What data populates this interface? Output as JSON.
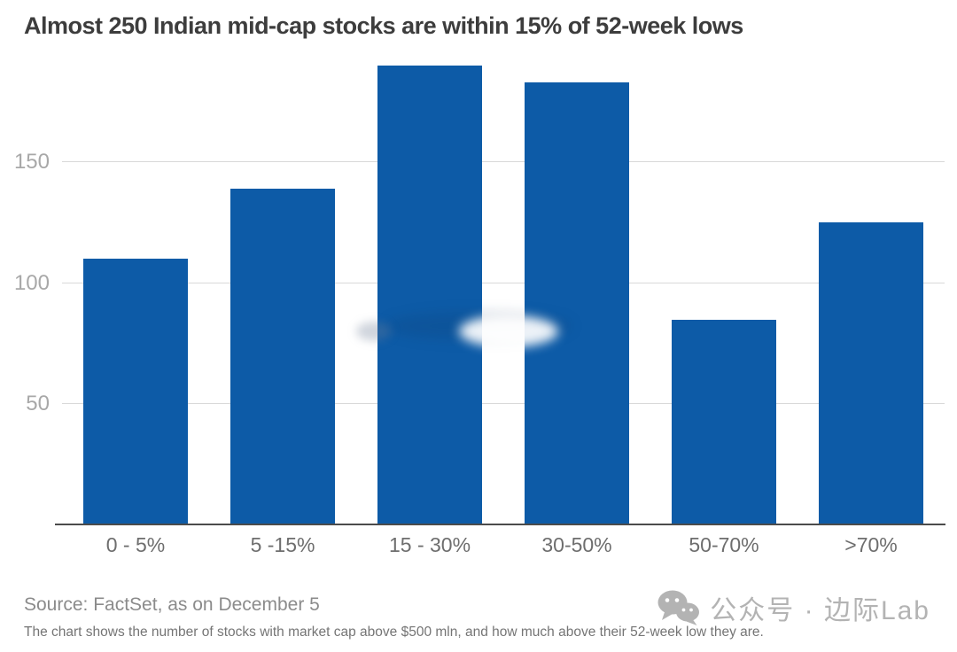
{
  "page": {
    "title": "Almost 250 Indian mid-cap stocks are within 15% of 52-week lows",
    "source": "Source: FactSet, as on December 5",
    "footnote": "The chart shows the number of stocks with market cap above $500 mln, and how much above their 52-week low they are.",
    "watermark": {
      "icon": "wechat-icon",
      "text": "公众号 · 边际Lab"
    }
  },
  "colors": {
    "background": "#ffffff",
    "bar": "#0d5ba7",
    "grid": "#d9d9d9",
    "axis": "#4b4b4b",
    "title_text": "#3d3d3d",
    "ytick_text": "#a8a8a8",
    "xtick_text": "#6e6e6e",
    "source_text": "#8b8b8b",
    "footnote_text": "#757575",
    "watermark_text": "#b3b3b3"
  },
  "chart_data": {
    "type": "bar",
    "title": "Almost 250 Indian mid-cap stocks are within 15% of 52-week lows",
    "categories": [
      "0 - 5%",
      "5 -15%",
      "15 - 30%",
      "30-50%",
      "50-70%",
      ">70%"
    ],
    "values": [
      110,
      139,
      190,
      183,
      85,
      125
    ],
    "xlabel": "",
    "ylabel": "",
    "yticks": [
      50,
      100,
      150
    ],
    "ylim": [
      0,
      195
    ],
    "grid": "horizontal",
    "legend": "none",
    "bar_color": "#0d5ba7"
  }
}
